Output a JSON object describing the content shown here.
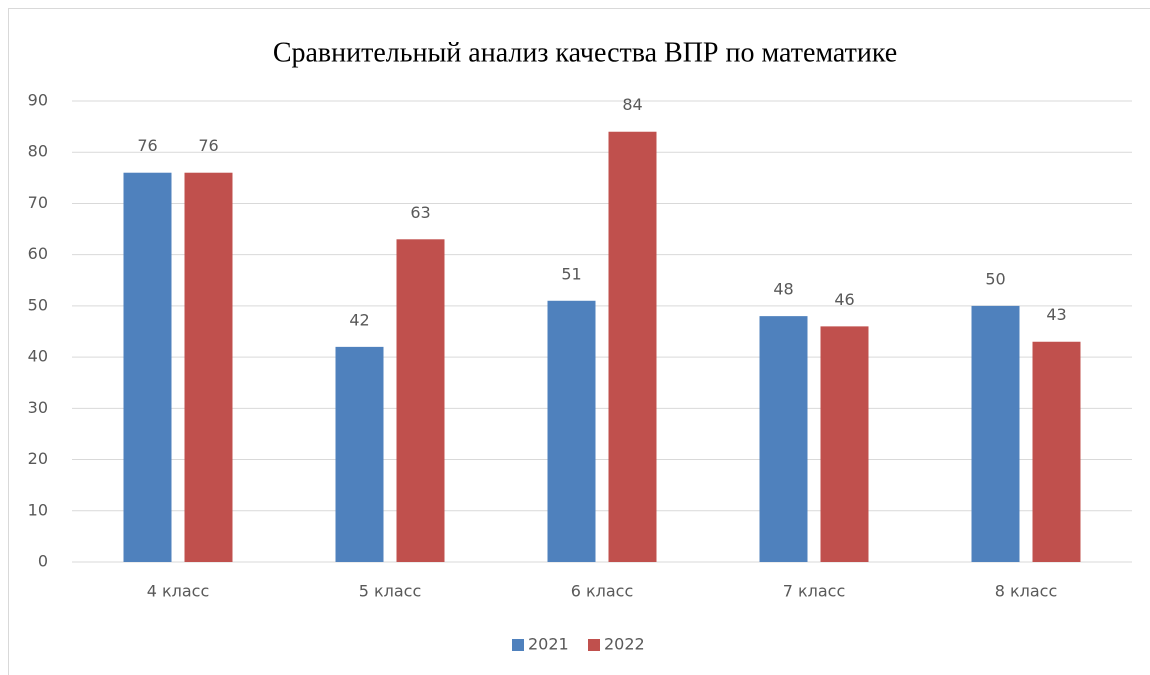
{
  "chart_data": {
    "type": "bar",
    "title": "Сравнительный анализ качества ВПР по математике",
    "categories": [
      "4 класс",
      "5 класс",
      "6 класс",
      "7 класс",
      "8 класс"
    ],
    "series": [
      {
        "name": "2021",
        "color": "#4f81bd",
        "values": [
          76,
          42,
          51,
          48,
          50
        ]
      },
      {
        "name": "2022",
        "color": "#c0504d",
        "values": [
          76,
          63,
          84,
          46,
          43
        ]
      }
    ],
    "ylim": [
      0,
      90
    ],
    "yticks": [
      0,
      10,
      20,
      30,
      40,
      50,
      60,
      70,
      80,
      90
    ],
    "grid": true,
    "legend": "bottom"
  }
}
